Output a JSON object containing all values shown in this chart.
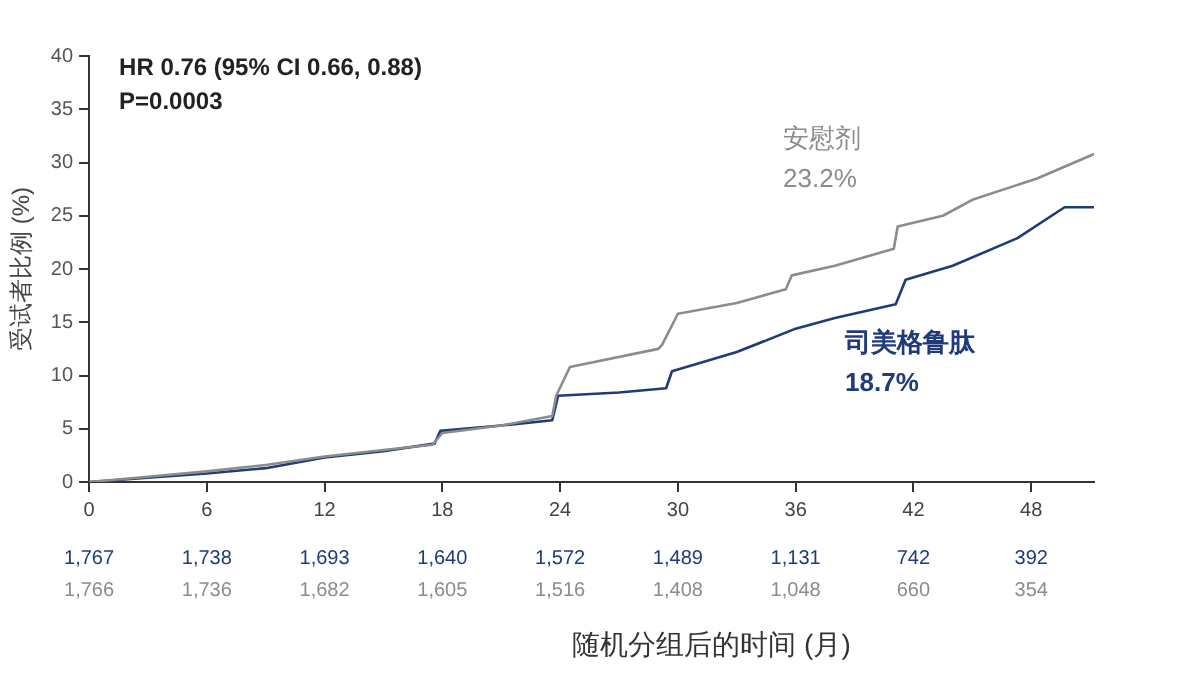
{
  "chart_data": {
    "type": "line",
    "xlabel": "随机分组后的时间 (月)",
    "ylabel": "受试者比例 (%)",
    "xlim": [
      0,
      51.2
    ],
    "xticks": [
      0,
      6,
      12,
      18,
      24,
      30,
      36,
      42,
      48
    ],
    "ylim": [
      0,
      40
    ],
    "yticks": [
      0,
      5,
      10,
      15,
      20,
      25,
      30,
      35,
      40
    ],
    "grid": false,
    "legend": false,
    "marker": "none",
    "line_style": "solid",
    "series": [
      {
        "name": "安慰剂",
        "color": "#8c8c8c",
        "x": [
          0,
          3,
          6,
          9,
          12,
          15,
          17.5,
          18,
          21,
          23.6,
          23.8,
          24.5,
          29,
          29.2,
          30,
          33,
          35.5,
          35.8,
          38,
          41,
          41.2,
          43.5,
          45,
          48.3,
          51.2
        ],
        "values": [
          0,
          0.5,
          1,
          1.6,
          2.4,
          3,
          3.5,
          4.6,
          5.3,
          6.2,
          8.1,
          10.8,
          12.5,
          12.9,
          15.8,
          16.8,
          18.1,
          19.4,
          20.3,
          21.9,
          24,
          25,
          26.5,
          28.5,
          30.8
        ]
      },
      {
        "name": "司美格鲁肽",
        "color": "#1f3b7a",
        "x": [
          0,
          3,
          6,
          9,
          12,
          15,
          17.6,
          17.9,
          21,
          23.6,
          23.9,
          27,
          29.4,
          29.7,
          33,
          36,
          38,
          41.1,
          41.6,
          44,
          47.3,
          49.7,
          51.2
        ],
        "values": [
          0,
          0.4,
          0.8,
          1.3,
          2.3,
          2.9,
          3.6,
          4.8,
          5.3,
          5.8,
          8.1,
          8.4,
          8.8,
          10.4,
          12.2,
          14.4,
          15.4,
          16.7,
          19,
          20.3,
          22.9,
          25.8,
          25.8
        ]
      }
    ],
    "annotations": [
      "HR 0.76 (95% CI 0.66, 0.88)",
      "P=0.0003",
      "23.2%",
      "18.7%",
      "1,767",
      "1,738",
      "1,693",
      "1,640",
      "1,572",
      "1,489",
      "1,131",
      "742",
      "392",
      "1,766",
      "1,736",
      "1,682",
      "1,605",
      "1,516",
      "1,408",
      "1,048",
      "660",
      "354"
    ]
  }
}
